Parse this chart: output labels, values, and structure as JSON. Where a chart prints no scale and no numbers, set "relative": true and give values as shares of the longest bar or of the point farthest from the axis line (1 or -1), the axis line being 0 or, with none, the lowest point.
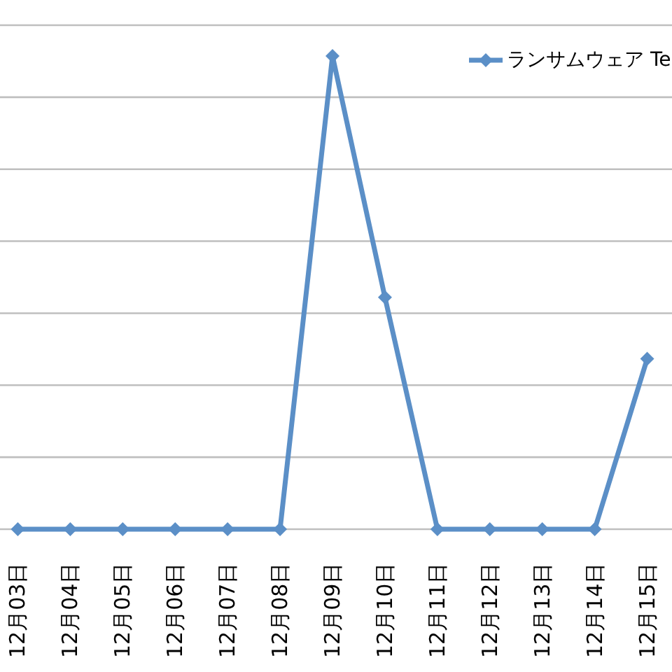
{
  "chart_data": {
    "type": "line",
    "categories": [
      "12月03日",
      "12月04日",
      "12月05日",
      "12月06日",
      "12月07日",
      "12月08日",
      "12月09日",
      "12月10日",
      "12月11日",
      "12月12日",
      "12月13日",
      "12月14日",
      "12月15日"
    ],
    "series": [
      {
        "name": "ランサムウェア Te",
        "color": "#5b8fc7",
        "values": [
          0,
          0,
          0,
          0,
          0,
          0,
          1,
          0.49,
          0,
          0,
          0,
          0,
          0.36
        ]
      }
    ],
    "relative": true,
    "grid": "y",
    "legend": "top right",
    "marker": "diamond",
    "line_style": "solid"
  }
}
